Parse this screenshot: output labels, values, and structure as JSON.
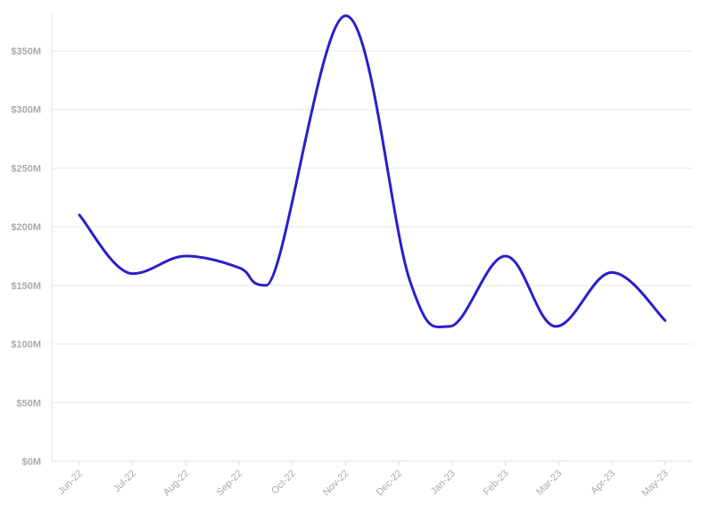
{
  "chart_data": {
    "type": "line",
    "title": "",
    "xlabel": "",
    "ylabel": "",
    "categories": [
      "Jun-22",
      "Jul-22",
      "Aug-22",
      "Sep-22",
      "Oct-22",
      "Nov-22",
      "Dec-22",
      "Jan-23",
      "Feb-23",
      "Mar-23",
      "Apr-23",
      "May-23"
    ],
    "x": [
      0,
      1,
      2,
      3,
      3.5,
      5,
      6.2,
      6.95,
      8,
      8.95,
      10,
      11
    ],
    "series": [
      {
        "values": [
          210,
          160,
          175,
          165,
          150,
          380,
          155,
          115,
          175,
          115,
          161,
          120
        ],
        "color": "#2a1fc9"
      }
    ],
    "y_ticks": [
      0,
      50,
      100,
      150,
      200,
      250,
      300,
      350
    ],
    "y_tick_labels": [
      "$0M",
      "$50M",
      "$100M",
      "$150M",
      "$200M",
      "$250M",
      "$300M",
      "$350M"
    ],
    "ylim": [
      0,
      350
    ],
    "y_unit": "$M",
    "grid": true,
    "legend": "none",
    "curve": "smooth",
    "x_label_rotation": -45
  }
}
